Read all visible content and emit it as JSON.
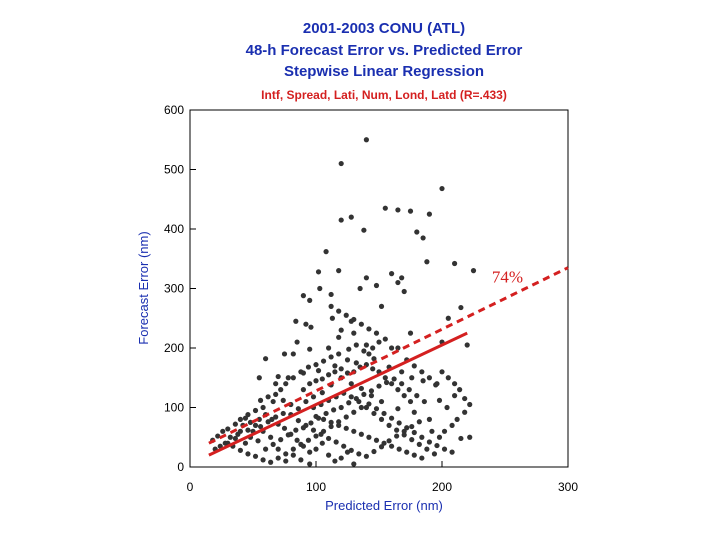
{
  "chart_data": {
    "type": "scatter",
    "title": [
      "2001-2003 CONU (ATL)",
      "48-h Forecast Error vs. Predicted Error",
      "Stepwise Linear Regression"
    ],
    "subtitle": "Intf, Spread, Lati, Num, Lond, Latd  (R=.433)",
    "xlabel": "Predicted Error (nm)",
    "ylabel": "Forecast Error (nm)",
    "xlim": [
      0,
      300
    ],
    "ylim": [
      0,
      600
    ],
    "xticks": [
      "0",
      "100",
      "200",
      "300"
    ],
    "yticks": [
      "0",
      "100",
      "200",
      "300",
      "400",
      "500",
      "600"
    ],
    "grid": false,
    "annotation": "74%",
    "colors": {
      "points": "#333333",
      "regression": "#d42020",
      "axis_text": "#1a2fb0"
    },
    "regression_line": {
      "style": "solid",
      "x": [
        15,
        220
      ],
      "y": [
        20,
        225
      ]
    },
    "percent_line": {
      "style": "dashed",
      "label": "74%",
      "x": [
        15,
        300
      ],
      "y": [
        40,
        335
      ]
    },
    "points": [
      [
        140,
        550
      ],
      [
        200,
        468
      ],
      [
        120,
        510
      ],
      [
        155,
        435
      ],
      [
        165,
        432
      ],
      [
        175,
        430
      ],
      [
        120,
        415
      ],
      [
        128,
        420
      ],
      [
        138,
        398
      ],
      [
        180,
        395
      ],
      [
        190,
        425
      ],
      [
        185,
        385
      ],
      [
        108,
        362
      ],
      [
        188,
        345
      ],
      [
        210,
        342
      ],
      [
        118,
        330
      ],
      [
        102,
        328
      ],
      [
        165,
        310
      ],
      [
        160,
        325
      ],
      [
        225,
        330
      ],
      [
        140,
        318
      ],
      [
        135,
        300
      ],
      [
        103,
        300
      ],
      [
        112,
        290
      ],
      [
        148,
        305
      ],
      [
        168,
        318
      ],
      [
        170,
        295
      ],
      [
        215,
        268
      ],
      [
        205,
        250
      ],
      [
        90,
        288
      ],
      [
        95,
        280
      ],
      [
        84,
        245
      ],
      [
        92,
        240
      ],
      [
        113,
        250
      ],
      [
        128,
        245
      ],
      [
        152,
        270
      ],
      [
        120,
        230
      ],
      [
        96,
        235
      ],
      [
        140,
        205
      ],
      [
        85,
        210
      ],
      [
        110,
        200
      ],
      [
        82,
        190
      ],
      [
        75,
        190
      ],
      [
        142,
        190
      ],
      [
        175,
        225
      ],
      [
        200,
        210
      ],
      [
        220,
        205
      ],
      [
        165,
        200
      ],
      [
        130,
        225
      ],
      [
        118,
        218
      ],
      [
        95,
        198
      ],
      [
        60,
        182
      ],
      [
        70,
        152
      ],
      [
        55,
        150
      ],
      [
        68,
        140
      ],
      [
        78,
        150
      ],
      [
        90,
        158
      ],
      [
        102,
        162
      ],
      [
        115,
        170
      ],
      [
        125,
        180
      ],
      [
        132,
        175
      ],
      [
        146,
        182
      ],
      [
        158,
        168
      ],
      [
        168,
        160
      ],
      [
        176,
        150
      ],
      [
        185,
        145
      ],
      [
        195,
        138
      ],
      [
        210,
        120
      ],
      [
        198,
        112
      ],
      [
        204,
        100
      ],
      [
        218,
        92
      ],
      [
        190,
        80
      ],
      [
        178,
        92
      ],
      [
        165,
        98
      ],
      [
        152,
        110
      ],
      [
        144,
        120
      ],
      [
        136,
        132
      ],
      [
        128,
        140
      ],
      [
        120,
        150
      ],
      [
        112,
        138
      ],
      [
        105,
        125
      ],
      [
        98,
        118
      ],
      [
        92,
        110
      ],
      [
        86,
        98
      ],
      [
        80,
        105
      ],
      [
        74,
        112
      ],
      [
        66,
        110
      ],
      [
        58,
        100
      ],
      [
        52,
        95
      ],
      [
        46,
        88
      ],
      [
        40,
        80
      ],
      [
        36,
        72
      ],
      [
        30,
        64
      ],
      [
        26,
        60
      ],
      [
        22,
        52
      ],
      [
        18,
        45
      ],
      [
        28,
        40
      ],
      [
        34,
        35
      ],
      [
        40,
        28
      ],
      [
        46,
        22
      ],
      [
        52,
        18
      ],
      [
        58,
        12
      ],
      [
        64,
        8
      ],
      [
        70,
        15
      ],
      [
        76,
        22
      ],
      [
        82,
        30
      ],
      [
        88,
        38
      ],
      [
        94,
        45
      ],
      [
        100,
        52
      ],
      [
        106,
        60
      ],
      [
        112,
        68
      ],
      [
        118,
        76
      ],
      [
        124,
        84
      ],
      [
        130,
        92
      ],
      [
        136,
        100
      ],
      [
        142,
        106
      ],
      [
        148,
        98
      ],
      [
        154,
        90
      ],
      [
        160,
        82
      ],
      [
        166,
        74
      ],
      [
        172,
        66
      ],
      [
        178,
        58
      ],
      [
        184,
        50
      ],
      [
        190,
        42
      ],
      [
        196,
        36
      ],
      [
        202,
        30
      ],
      [
        208,
        25
      ],
      [
        215,
        48
      ],
      [
        222,
        50
      ],
      [
        50,
        60
      ],
      [
        56,
        68
      ],
      [
        62,
        76
      ],
      [
        68,
        84
      ],
      [
        74,
        90
      ],
      [
        80,
        88
      ],
      [
        86,
        78
      ],
      [
        92,
        70
      ],
      [
        98,
        62
      ],
      [
        104,
        55
      ],
      [
        110,
        48
      ],
      [
        116,
        42
      ],
      [
        122,
        35
      ],
      [
        128,
        28
      ],
      [
        134,
        22
      ],
      [
        140,
        18
      ],
      [
        146,
        26
      ],
      [
        152,
        34
      ],
      [
        158,
        44
      ],
      [
        164,
        52
      ],
      [
        170,
        60
      ],
      [
        176,
        68
      ],
      [
        182,
        76
      ],
      [
        60,
        30
      ],
      [
        66,
        38
      ],
      [
        72,
        46
      ],
      [
        78,
        54
      ],
      [
        84,
        62
      ],
      [
        90,
        66
      ],
      [
        96,
        74
      ],
      [
        102,
        82
      ],
      [
        108,
        90
      ],
      [
        114,
        96
      ],
      [
        120,
        100
      ],
      [
        126,
        108
      ],
      [
        132,
        115
      ],
      [
        138,
        122
      ],
      [
        144,
        128
      ],
      [
        150,
        136
      ],
      [
        156,
        142
      ],
      [
        162,
        148
      ],
      [
        168,
        140
      ],
      [
        174,
        130
      ],
      [
        180,
        120
      ],
      [
        186,
        110
      ],
      [
        44,
        40
      ],
      [
        48,
        50
      ],
      [
        54,
        44
      ],
      [
        38,
        55
      ],
      [
        32,
        50
      ],
      [
        90,
        130
      ],
      [
        95,
        140
      ],
      [
        100,
        145
      ],
      [
        105,
        148
      ],
      [
        110,
        155
      ],
      [
        115,
        160
      ],
      [
        120,
        165
      ],
      [
        125,
        158
      ],
      [
        130,
        160
      ],
      [
        135,
        168
      ],
      [
        140,
        172
      ],
      [
        145,
        165
      ],
      [
        150,
        160
      ],
      [
        155,
        150
      ],
      [
        160,
        140
      ],
      [
        165,
        130
      ],
      [
        170,
        120
      ],
      [
        175,
        110
      ],
      [
        98,
        100
      ],
      [
        104,
        105
      ],
      [
        110,
        112
      ],
      [
        116,
        118
      ],
      [
        122,
        124
      ],
      [
        128,
        118
      ],
      [
        134,
        110
      ],
      [
        140,
        100
      ],
      [
        146,
        90
      ],
      [
        152,
        80
      ],
      [
        158,
        70
      ],
      [
        164,
        62
      ],
      [
        170,
        54
      ],
      [
        176,
        46
      ],
      [
        182,
        38
      ],
      [
        188,
        30
      ],
      [
        194,
        22
      ],
      [
        100,
        85
      ],
      [
        106,
        80
      ],
      [
        112,
        75
      ],
      [
        118,
        70
      ],
      [
        124,
        65
      ],
      [
        130,
        60
      ],
      [
        136,
        55
      ],
      [
        142,
        50
      ],
      [
        148,
        45
      ],
      [
        154,
        40
      ],
      [
        160,
        35
      ],
      [
        166,
        30
      ],
      [
        172,
        25
      ],
      [
        178,
        20
      ],
      [
        184,
        15
      ],
      [
        110,
        20
      ],
      [
        115,
        10
      ],
      [
        120,
        15
      ],
      [
        125,
        25
      ],
      [
        130,
        5
      ],
      [
        95,
        5
      ],
      [
        88,
        12
      ],
      [
        82,
        20
      ],
      [
        76,
        10
      ],
      [
        70,
        30
      ],
      [
        64,
        50
      ],
      [
        58,
        60
      ],
      [
        52,
        70
      ],
      [
        46,
        62
      ],
      [
        42,
        70
      ],
      [
        105,
        40
      ],
      [
        100,
        30
      ],
      [
        95,
        25
      ],
      [
        90,
        35
      ],
      [
        85,
        45
      ],
      [
        80,
        55
      ],
      [
        75,
        65
      ],
      [
        70,
        72
      ],
      [
        65,
        80
      ],
      [
        60,
        88
      ],
      [
        55,
        80
      ],
      [
        48,
        75
      ],
      [
        44,
        82
      ],
      [
        40,
        60
      ],
      [
        36,
        48
      ],
      [
        30,
        40
      ],
      [
        24,
        35
      ],
      [
        20,
        30
      ],
      [
        150,
        210
      ],
      [
        145,
        200
      ],
      [
        138,
        195
      ],
      [
        132,
        205
      ],
      [
        126,
        198
      ],
      [
        118,
        190
      ],
      [
        112,
        185
      ],
      [
        106,
        178
      ],
      [
        100,
        172
      ],
      [
        94,
        168
      ],
      [
        88,
        160
      ],
      [
        82,
        150
      ],
      [
        76,
        140
      ],
      [
        72,
        130
      ],
      [
        68,
        122
      ],
      [
        62,
        118
      ],
      [
        56,
        112
      ],
      [
        172,
        180
      ],
      [
        178,
        170
      ],
      [
        184,
        160
      ],
      [
        190,
        150
      ],
      [
        196,
        140
      ],
      [
        160,
        200
      ],
      [
        155,
        215
      ],
      [
        148,
        225
      ],
      [
        142,
        232
      ],
      [
        136,
        240
      ],
      [
        130,
        248
      ],
      [
        124,
        255
      ],
      [
        118,
        262
      ],
      [
        112,
        270
      ],
      [
        200,
        160
      ],
      [
        205,
        150
      ],
      [
        210,
        140
      ],
      [
        214,
        130
      ],
      [
        218,
        115
      ],
      [
        222,
        105
      ],
      [
        212,
        80
      ],
      [
        208,
        70
      ],
      [
        202,
        60
      ],
      [
        198,
        50
      ],
      [
        192,
        60
      ]
    ]
  }
}
